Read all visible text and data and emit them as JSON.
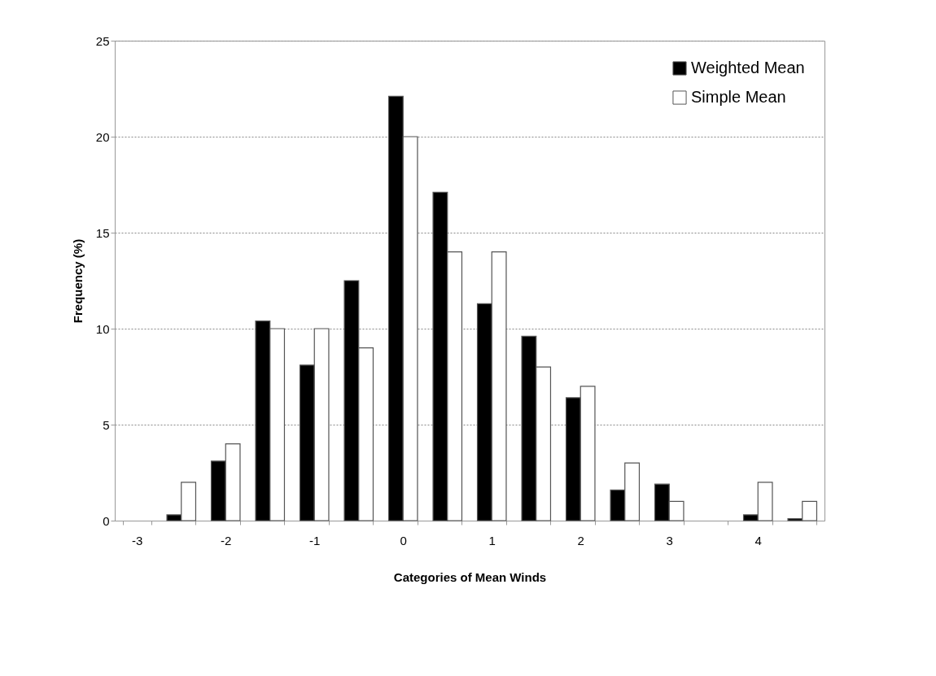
{
  "chart_data": {
    "type": "bar",
    "xlabel": "Categories of Mean Winds",
    "ylabel": "Frequency (%)",
    "categories": [
      "-3",
      null,
      "-2",
      null,
      "-1",
      null,
      "0",
      null,
      "1",
      null,
      "2",
      null,
      "3",
      null,
      "4",
      null
    ],
    "series": [
      {
        "name": "Weighted Mean",
        "color": "#000000",
        "values": [
          null,
          0.3,
          3.1,
          10.4,
          8.1,
          12.5,
          22.1,
          17.1,
          11.3,
          9.6,
          6.4,
          1.6,
          1.9,
          null,
          0.3,
          0.1
        ]
      },
      {
        "name": "Simple Mean",
        "color": "#ffffff",
        "values": [
          null,
          2,
          4,
          10,
          10,
          9,
          20,
          14,
          14,
          8,
          7,
          3,
          1,
          null,
          2,
          1
        ]
      }
    ],
    "ylim": [
      0,
      25
    ],
    "yticks": [
      0,
      5,
      10,
      15,
      20,
      25
    ],
    "grid": "y",
    "legend": "top right"
  }
}
